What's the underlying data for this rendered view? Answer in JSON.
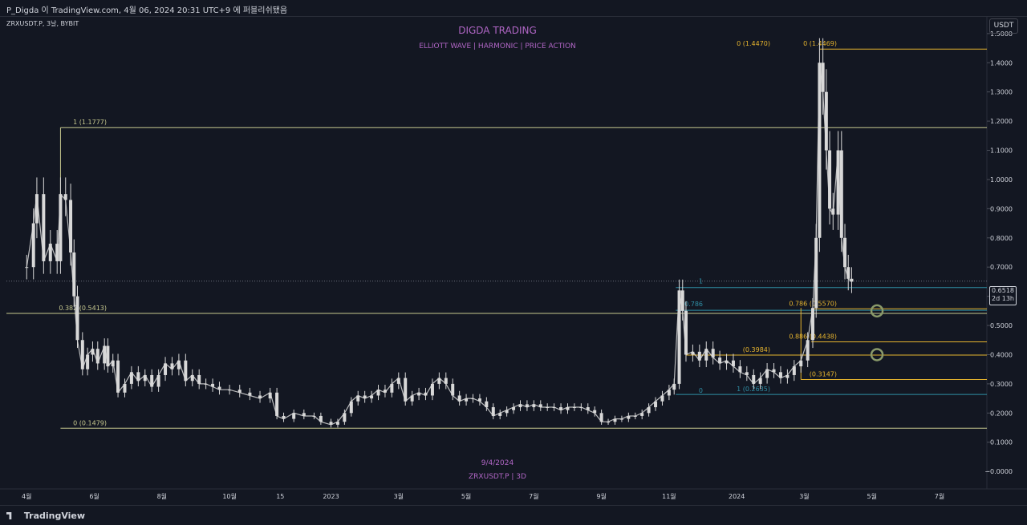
{
  "header": {
    "title_line": "P_Digda 이 TradingView.com, 4월 06, 2024 20:31 UTC+9 에 퍼블리쉬됐음"
  },
  "symbol_label": "ZRXUSDT.P, 3날, BYBIT",
  "currency": "USDT",
  "watermark": {
    "title": "DIGDA TRADING",
    "subtitle": "ELLIOTT WAVE  |  HARMONIC  |  PRICE ACTION",
    "date": "9/4/2024",
    "symbol": "ZRXUSDT.P | 3D"
  },
  "price_badge": {
    "price": "0.6518",
    "countdown": "2d 13h"
  },
  "footer": {
    "brand": "TradingView"
  },
  "colors": {
    "background": "#131722",
    "candle": "#d8d8d8",
    "fib_main": "#c7c98f",
    "fib_gold": "#e6b42e",
    "fib_cyan": "#2f8fa6",
    "watermark": "#b066c5",
    "circle": "#8a9a6a"
  },
  "chart_data": {
    "type": "candlestick",
    "y_axis": {
      "min": -0.06,
      "max": 1.56,
      "ticks": [
        "1.5000",
        "1.4000",
        "1.3000",
        "1.2000",
        "1.1000",
        "1.0000",
        "0.9000",
        "0.8000",
        "0.7000",
        "0.6000",
        "0.5000",
        "0.4000",
        "0.3000",
        "0.2000",
        "0.1000",
        "−0.0000"
      ],
      "tick_values": [
        1.5,
        1.4,
        1.3,
        1.2,
        1.1,
        1.0,
        0.9,
        0.8,
        0.7,
        0.6,
        0.5,
        0.4,
        0.3,
        0.2,
        0.1,
        0.0
      ]
    },
    "x_axis": {
      "labels": [
        {
          "t": "4월",
          "x": 0.6
        },
        {
          "t": "6월",
          "x": 2.6
        },
        {
          "t": "8월",
          "x": 4.6
        },
        {
          "t": "10월",
          "x": 6.6
        },
        {
          "t": "15",
          "x": 8.1
        },
        {
          "t": "2023",
          "x": 9.6
        },
        {
          "t": "3월",
          "x": 11.6
        },
        {
          "t": "5월",
          "x": 13.6
        },
        {
          "t": "7월",
          "x": 15.6
        },
        {
          "t": "9월",
          "x": 17.6
        },
        {
          "t": "11월",
          "x": 19.6
        },
        {
          "t": "2024",
          "x": 21.6
        },
        {
          "t": "3월",
          "x": 23.6
        },
        {
          "t": "5월",
          "x": 25.6
        },
        {
          "t": "7월",
          "x": 27.6
        }
      ],
      "min": 0,
      "max": 29
    },
    "series_points": [
      [
        0.6,
        0.7
      ],
      [
        0.8,
        0.85
      ],
      [
        0.9,
        0.95
      ],
      [
        1.1,
        0.72
      ],
      [
        1.3,
        0.78
      ],
      [
        1.5,
        0.72
      ],
      [
        1.6,
        0.95
      ],
      [
        1.75,
        0.93
      ],
      [
        1.9,
        0.75
      ],
      [
        2.0,
        0.6
      ],
      [
        2.1,
        0.45
      ],
      [
        2.25,
        0.35
      ],
      [
        2.4,
        0.4
      ],
      [
        2.55,
        0.42
      ],
      [
        2.7,
        0.37
      ],
      [
        2.9,
        0.43
      ],
      [
        3.0,
        0.36
      ],
      [
        3.15,
        0.38
      ],
      [
        3.3,
        0.27
      ],
      [
        3.5,
        0.3
      ],
      [
        3.7,
        0.34
      ],
      [
        3.9,
        0.31
      ],
      [
        4.1,
        0.33
      ],
      [
        4.3,
        0.29
      ],
      [
        4.5,
        0.33
      ],
      [
        4.7,
        0.37
      ],
      [
        4.9,
        0.35
      ],
      [
        5.1,
        0.38
      ],
      [
        5.3,
        0.31
      ],
      [
        5.5,
        0.33
      ],
      [
        5.7,
        0.3
      ],
      [
        5.9,
        0.3
      ],
      [
        6.1,
        0.29
      ],
      [
        6.3,
        0.28
      ],
      [
        6.6,
        0.28
      ],
      [
        6.9,
        0.27
      ],
      [
        7.2,
        0.26
      ],
      [
        7.5,
        0.25
      ],
      [
        7.8,
        0.27
      ],
      [
        8.0,
        0.19
      ],
      [
        8.2,
        0.18
      ],
      [
        8.5,
        0.2
      ],
      [
        8.8,
        0.19
      ],
      [
        9.1,
        0.19
      ],
      [
        9.3,
        0.17
      ],
      [
        9.6,
        0.16
      ],
      [
        9.8,
        0.17
      ],
      [
        10.0,
        0.2
      ],
      [
        10.2,
        0.24
      ],
      [
        10.4,
        0.26
      ],
      [
        10.6,
        0.25
      ],
      [
        10.8,
        0.26
      ],
      [
        11.0,
        0.28
      ],
      [
        11.2,
        0.27
      ],
      [
        11.4,
        0.3
      ],
      [
        11.6,
        0.32
      ],
      [
        11.8,
        0.24
      ],
      [
        12.0,
        0.26
      ],
      [
        12.2,
        0.27
      ],
      [
        12.4,
        0.26
      ],
      [
        12.6,
        0.3
      ],
      [
        12.8,
        0.32
      ],
      [
        13.0,
        0.3
      ],
      [
        13.2,
        0.26
      ],
      [
        13.4,
        0.24
      ],
      [
        13.6,
        0.25
      ],
      [
        13.8,
        0.25
      ],
      [
        14.0,
        0.24
      ],
      [
        14.2,
        0.22
      ],
      [
        14.4,
        0.19
      ],
      [
        14.6,
        0.2
      ],
      [
        14.8,
        0.21
      ],
      [
        15.0,
        0.22
      ],
      [
        15.2,
        0.23
      ],
      [
        15.4,
        0.22
      ],
      [
        15.6,
        0.23
      ],
      [
        15.8,
        0.22
      ],
      [
        16.0,
        0.22
      ],
      [
        16.2,
        0.22
      ],
      [
        16.4,
        0.21
      ],
      [
        16.6,
        0.22
      ],
      [
        16.8,
        0.22
      ],
      [
        17.0,
        0.22
      ],
      [
        17.2,
        0.21
      ],
      [
        17.4,
        0.2
      ],
      [
        17.6,
        0.17
      ],
      [
        17.8,
        0.17
      ],
      [
        18.0,
        0.18
      ],
      [
        18.2,
        0.18
      ],
      [
        18.4,
        0.19
      ],
      [
        18.6,
        0.19
      ],
      [
        18.8,
        0.2
      ],
      [
        19.0,
        0.22
      ],
      [
        19.2,
        0.24
      ],
      [
        19.4,
        0.26
      ],
      [
        19.6,
        0.28
      ],
      [
        19.75,
        0.3
      ],
      [
        19.9,
        0.62
      ],
      [
        20.0,
        0.55
      ],
      [
        20.1,
        0.4
      ],
      [
        20.3,
        0.41
      ],
      [
        20.5,
        0.38
      ],
      [
        20.7,
        0.42
      ],
      [
        20.9,
        0.39
      ],
      [
        21.1,
        0.37
      ],
      [
        21.3,
        0.38
      ],
      [
        21.5,
        0.36
      ],
      [
        21.7,
        0.34
      ],
      [
        21.9,
        0.33
      ],
      [
        22.1,
        0.3
      ],
      [
        22.3,
        0.32
      ],
      [
        22.5,
        0.35
      ],
      [
        22.7,
        0.34
      ],
      [
        22.9,
        0.32
      ],
      [
        23.1,
        0.33
      ],
      [
        23.3,
        0.36
      ],
      [
        23.5,
        0.38
      ],
      [
        23.7,
        0.45
      ],
      [
        23.85,
        0.56
      ],
      [
        23.95,
        0.8
      ],
      [
        24.05,
        1.4
      ],
      [
        24.15,
        1.3
      ],
      [
        24.25,
        1.1
      ],
      [
        24.35,
        0.9
      ],
      [
        24.45,
        0.88
      ],
      [
        24.6,
        1.1
      ],
      [
        24.7,
        0.8
      ],
      [
        24.8,
        0.7
      ],
      [
        24.9,
        0.66
      ],
      [
        25.0,
        0.65
      ]
    ],
    "levels": [
      {
        "label": "1 (1.1777)",
        "value": 1.1777,
        "x0": 1.6,
        "x1": 29,
        "color": "#c7c98f"
      },
      {
        "label": "0.382 (0.5413)",
        "value": 0.5413,
        "x0": 0.0,
        "x1": 29,
        "color": "#c7c98f"
      },
      {
        "label": "0 (0.1479)",
        "value": 0.1479,
        "x0": 1.6,
        "x1": 29,
        "color": "#c7c98f"
      },
      {
        "label": "0 (1.4469)",
        "value": 1.4469,
        "x0": 24.05,
        "x1": 29,
        "color": "#e6b42e"
      },
      {
        "label": "0.786 (0.5570)",
        "value": 0.557,
        "x0": 23.8,
        "x1": 29,
        "color": "#e6b42e"
      },
      {
        "label": "0.886 (0.4438)",
        "value": 0.4438,
        "x0": 23.8,
        "x1": 29,
        "color": "#e6b42e"
      },
      {
        "label": "(0.3984)",
        "value": 0.3984,
        "x0": 20.1,
        "x1": 29,
        "color": "#e6b42e"
      },
      {
        "label": "(0.3147)",
        "value": 0.3147,
        "x0": 23.5,
        "x1": 29,
        "color": "#e6b42e"
      },
      {
        "label": "1 (0.2635)",
        "value": 0.2635,
        "x0": 19.8,
        "x1": 29,
        "color": "#2f8fa6"
      },
      {
        "label": "0.786",
        "value": 0.552,
        "x0": 19.8,
        "x1": 29,
        "color": "#2f8fa6"
      },
      {
        "label": "1",
        "value": 0.63,
        "x0": 19.8,
        "x1": 29,
        "color": "#2f8fa6"
      }
    ],
    "extra_labels": [
      {
        "label": "0 (1.4470)",
        "value": 1.447
      },
      {
        "label": "0",
        "value": 0.2635
      }
    ],
    "circles": [
      {
        "x": 25.75,
        "value": 0.55
      },
      {
        "x": 25.75,
        "value": 0.4
      }
    ],
    "current_price": 0.6518
  }
}
